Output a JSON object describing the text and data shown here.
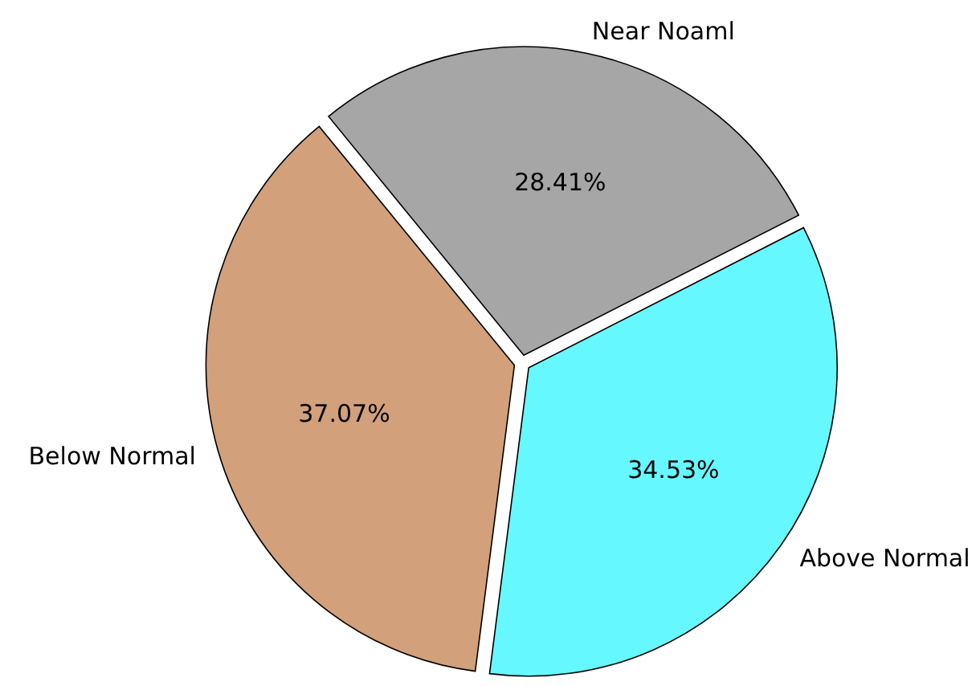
{
  "chart_data": {
    "type": "pie",
    "categories": [
      "Near Noaml",
      "Below Normal",
      "Above Normal"
    ],
    "values": [
      28.41,
      37.07,
      34.53
    ],
    "value_labels": [
      "28.41%",
      "37.07%",
      "34.53%"
    ],
    "colors": [
      "#a6a6a6",
      "#d2a07a",
      "#66f8ff"
    ]
  }
}
